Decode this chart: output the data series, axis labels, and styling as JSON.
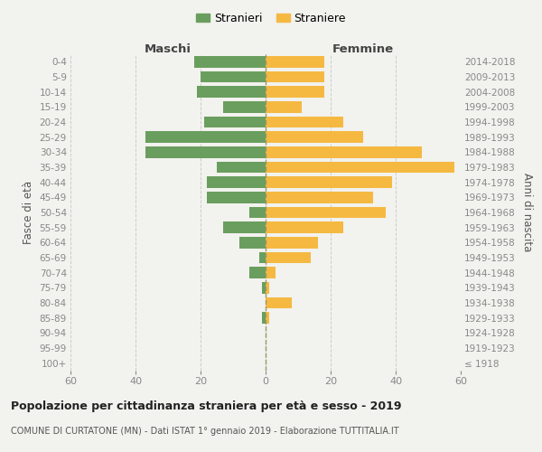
{
  "age_groups": [
    "100+",
    "95-99",
    "90-94",
    "85-89",
    "80-84",
    "75-79",
    "70-74",
    "65-69",
    "60-64",
    "55-59",
    "50-54",
    "45-49",
    "40-44",
    "35-39",
    "30-34",
    "25-29",
    "20-24",
    "15-19",
    "10-14",
    "5-9",
    "0-4"
  ],
  "birth_years": [
    "≤ 1918",
    "1919-1923",
    "1924-1928",
    "1929-1933",
    "1934-1938",
    "1939-1943",
    "1944-1948",
    "1949-1953",
    "1954-1958",
    "1959-1963",
    "1964-1968",
    "1969-1973",
    "1974-1978",
    "1979-1983",
    "1984-1988",
    "1989-1993",
    "1994-1998",
    "1999-2003",
    "2004-2008",
    "2009-2013",
    "2014-2018"
  ],
  "maschi": [
    0,
    0,
    0,
    1,
    0,
    1,
    5,
    2,
    8,
    13,
    5,
    18,
    18,
    15,
    37,
    37,
    19,
    13,
    21,
    20,
    22
  ],
  "femmine": [
    0,
    0,
    0,
    1,
    8,
    1,
    3,
    14,
    16,
    24,
    37,
    33,
    39,
    58,
    48,
    30,
    24,
    11,
    18,
    18,
    18
  ],
  "maschi_color": "#6a9e5e",
  "femmine_color": "#f5b942",
  "bg_color": "#f2f2ee",
  "grid_color": "#cccccc",
  "axis_label_color": "#555555",
  "tick_color": "#888888",
  "title": "Popolazione per cittadinanza straniera per età e sesso - 2019",
  "subtitle": "COMUNE DI CURTATONE (MN) - Dati ISTAT 1° gennaio 2019 - Elaborazione TUTTITALIA.IT",
  "xlabel_left": "Maschi",
  "xlabel_right": "Femmine",
  "ylabel_left": "Fasce di età",
  "ylabel_right": "Anni di nascita",
  "legend_stranieri": "Stranieri",
  "legend_straniere": "Straniere",
  "xlim": 60,
  "bar_height": 0.75
}
